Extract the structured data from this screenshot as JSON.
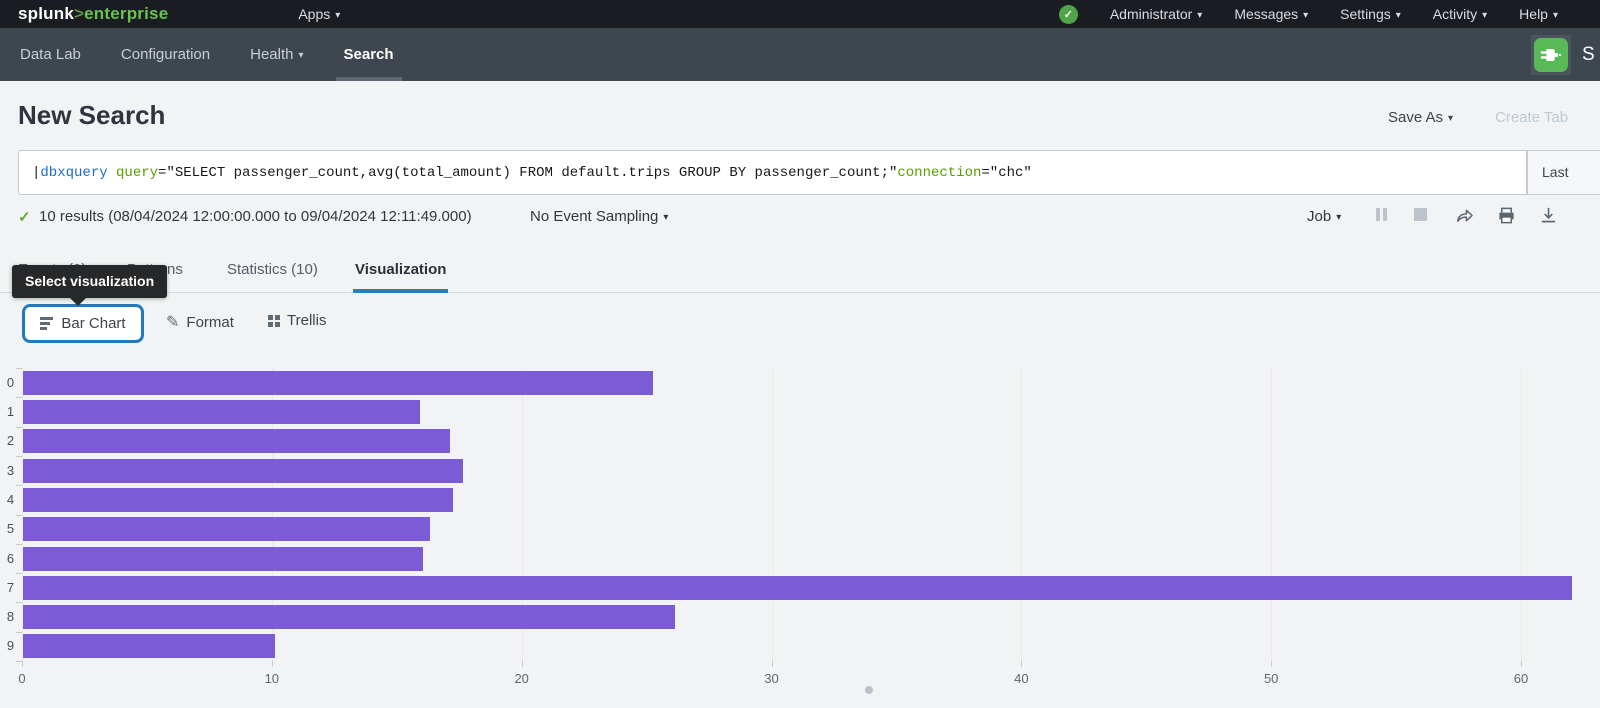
{
  "topnav": {
    "logo_brand": "splunk",
    "logo_gt": ">",
    "logo_product": "enterprise",
    "apps": "Apps",
    "menus": {
      "admin": "Administrator",
      "messages": "Messages",
      "settings": "Settings",
      "activity": "Activity",
      "help": "Help"
    }
  },
  "appnav": {
    "data_lab": "Data Lab",
    "configuration": "Configuration",
    "health": "Health",
    "search": "Search",
    "app_title_partial": "S"
  },
  "header": {
    "title": "New Search",
    "save_as": "Save As",
    "create_table_partial": "Create Tab"
  },
  "searchbar": {
    "pipe": "| ",
    "command": "dbxquery",
    "param1": "query",
    "param1_value": "=\"SELECT passenger_count,avg(total_amount) FROM default.trips GROUP BY passenger_count;\" ",
    "param2": "connection",
    "param2_value": "=\"chc\"",
    "time_range_partial": "Last"
  },
  "results_bar": {
    "status": "10 results (08/04/2024 12:00:00.000 to 09/04/2024 12:11:49.000)",
    "sampling": "No Event Sampling",
    "job": "Job"
  },
  "tabs": {
    "events": "Events (0)",
    "patterns": "Patterns",
    "statistics": "Statistics (10)",
    "visualization": "Visualization"
  },
  "tooltip": "Select visualization",
  "viz_toolbar": {
    "chart_type": "Bar Chart",
    "format": "Format",
    "trellis": "Trellis"
  },
  "chart_data": {
    "type": "bar",
    "orientation": "horizontal",
    "title": "",
    "xlabel": "",
    "ylabel": "",
    "categories": [
      "0",
      "1",
      "2",
      "3",
      "4",
      "5",
      "6",
      "7",
      "8",
      "9"
    ],
    "values": [
      25.2,
      15.9,
      17.1,
      17.6,
      17.2,
      16.3,
      16.0,
      62.0,
      26.1,
      10.1
    ],
    "x_ticks": [
      0,
      10,
      20,
      30,
      40,
      50,
      60
    ],
    "xlim": [
      0,
      63
    ],
    "grid": true,
    "legend": false,
    "bar_color": "#7b5cd6"
  },
  "colors": {
    "accent_blue": "#2180c0",
    "brand_green": "#65a637",
    "status_green": "#51a348",
    "bar_purple": "#7b5cd6"
  }
}
